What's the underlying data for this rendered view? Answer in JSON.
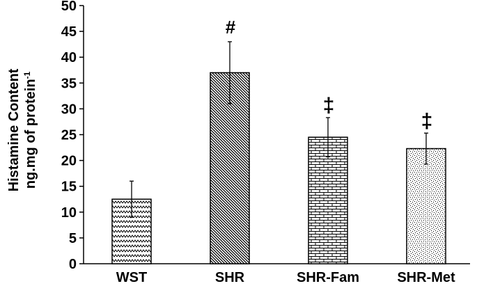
{
  "chart_data": {
    "type": "bar",
    "ylabel_line1": "Histamine Content",
    "ylabel_line2": "ng.mg of protein",
    "ylabel_sup": "-1",
    "ylim": [
      0,
      50
    ],
    "yticks": [
      "0",
      "5",
      "10",
      "15",
      "20",
      "25",
      "30",
      "35",
      "40",
      "45",
      "50"
    ],
    "categories": [
      "WST",
      "SHR",
      "SHR-Fam",
      "SHR-Met"
    ],
    "series": [
      {
        "values": [
          12.5,
          37.0,
          24.5,
          22.3
        ],
        "errors": [
          3.5,
          6.0,
          3.8,
          3.0
        ]
      }
    ],
    "annotations": [
      "",
      "#",
      "‡",
      "‡"
    ],
    "patterns": [
      "zigzag",
      "diagonal",
      "brick",
      "dots"
    ],
    "colors": {
      "bar_stroke": "#000000",
      "pattern": "#000000",
      "background": "#ffffff"
    },
    "grid": false,
    "legend": "none"
  }
}
